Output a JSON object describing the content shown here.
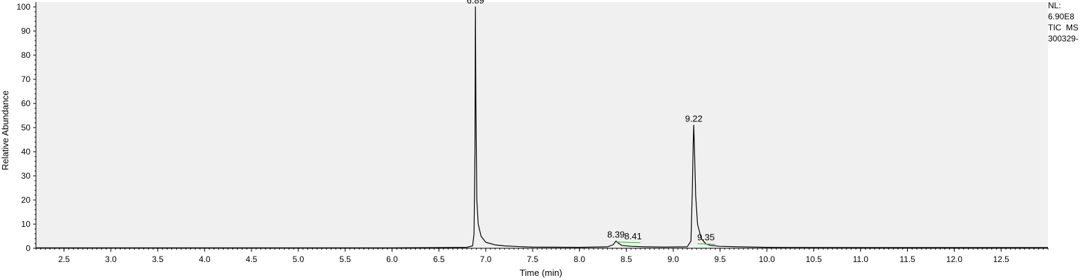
{
  "chart_data": {
    "type": "line",
    "xlabel": "Time (min)",
    "ylabel": "Relative Abundance",
    "xlim": [
      2.2,
      13.0
    ],
    "ylim": [
      0,
      102
    ],
    "x_ticks": [
      "2.5",
      "3.0",
      "3.5",
      "4.0",
      "4.5",
      "5.0",
      "5.5",
      "6.0",
      "6.5",
      "7.0",
      "7.5",
      "8.0",
      "8.5",
      "9.0",
      "9.5",
      "10.0",
      "10.5",
      "11.0",
      "11.5",
      "12.0",
      "12.5"
    ],
    "y_ticks": [
      "0",
      "10",
      "20",
      "30",
      "40",
      "50",
      "60",
      "70",
      "80",
      "90",
      "100"
    ],
    "series": [
      {
        "x": [
          2.2,
          6.0,
          6.5,
          6.8,
          6.86,
          6.875,
          6.885,
          6.89,
          6.895,
          6.905,
          6.92,
          6.95,
          7.0,
          7.1,
          7.2,
          7.35,
          7.5,
          8.0,
          8.3,
          8.36,
          8.39,
          8.41,
          8.45,
          8.55,
          8.7,
          8.9,
          9.15,
          9.19,
          9.205,
          9.215,
          9.22,
          9.228,
          9.24,
          9.26,
          9.3,
          9.35,
          9.4,
          9.5,
          9.7,
          10.0,
          11.0,
          12.0,
          13.0
        ],
        "y": [
          0.2,
          0.2,
          0.3,
          0.4,
          1.0,
          6.0,
          40.0,
          100.0,
          60.0,
          20.0,
          10.0,
          5.0,
          2.5,
          1.4,
          1.0,
          0.7,
          0.5,
          0.4,
          0.6,
          1.5,
          3.0,
          2.3,
          1.2,
          0.8,
          0.6,
          0.5,
          0.6,
          3.0,
          25.0,
          45.0,
          51.0,
          40.0,
          22.0,
          10.0,
          4.0,
          1.8,
          1.2,
          0.8,
          0.6,
          0.4,
          0.3,
          0.3,
          0.3
        ]
      }
    ],
    "peak_labels": [
      {
        "x": 6.89,
        "y": 100,
        "label": "6.89"
      },
      {
        "x": 8.39,
        "y": 3.0,
        "label": "8.39"
      },
      {
        "x": 8.41,
        "y": 2.3,
        "label": "8.41"
      },
      {
        "x": 9.22,
        "y": 51,
        "label": "9.22"
      },
      {
        "x": 9.35,
        "y": 1.8,
        "label": "9.35"
      }
    ],
    "baseline_marks": [
      {
        "from": 8.39,
        "to": 8.65,
        "y": 2.6
      },
      {
        "from": 9.26,
        "to": 9.45,
        "y": 1.9
      }
    ],
    "grid": false,
    "colors": {
      "plot_bg": "#f0f0f0",
      "trace": "#000000",
      "baseline": "#3cb043"
    }
  },
  "info": {
    "nl_label": "NL:",
    "nl_value": "6.90E8",
    "scan": "TIC  MS",
    "file": "300329-"
  }
}
